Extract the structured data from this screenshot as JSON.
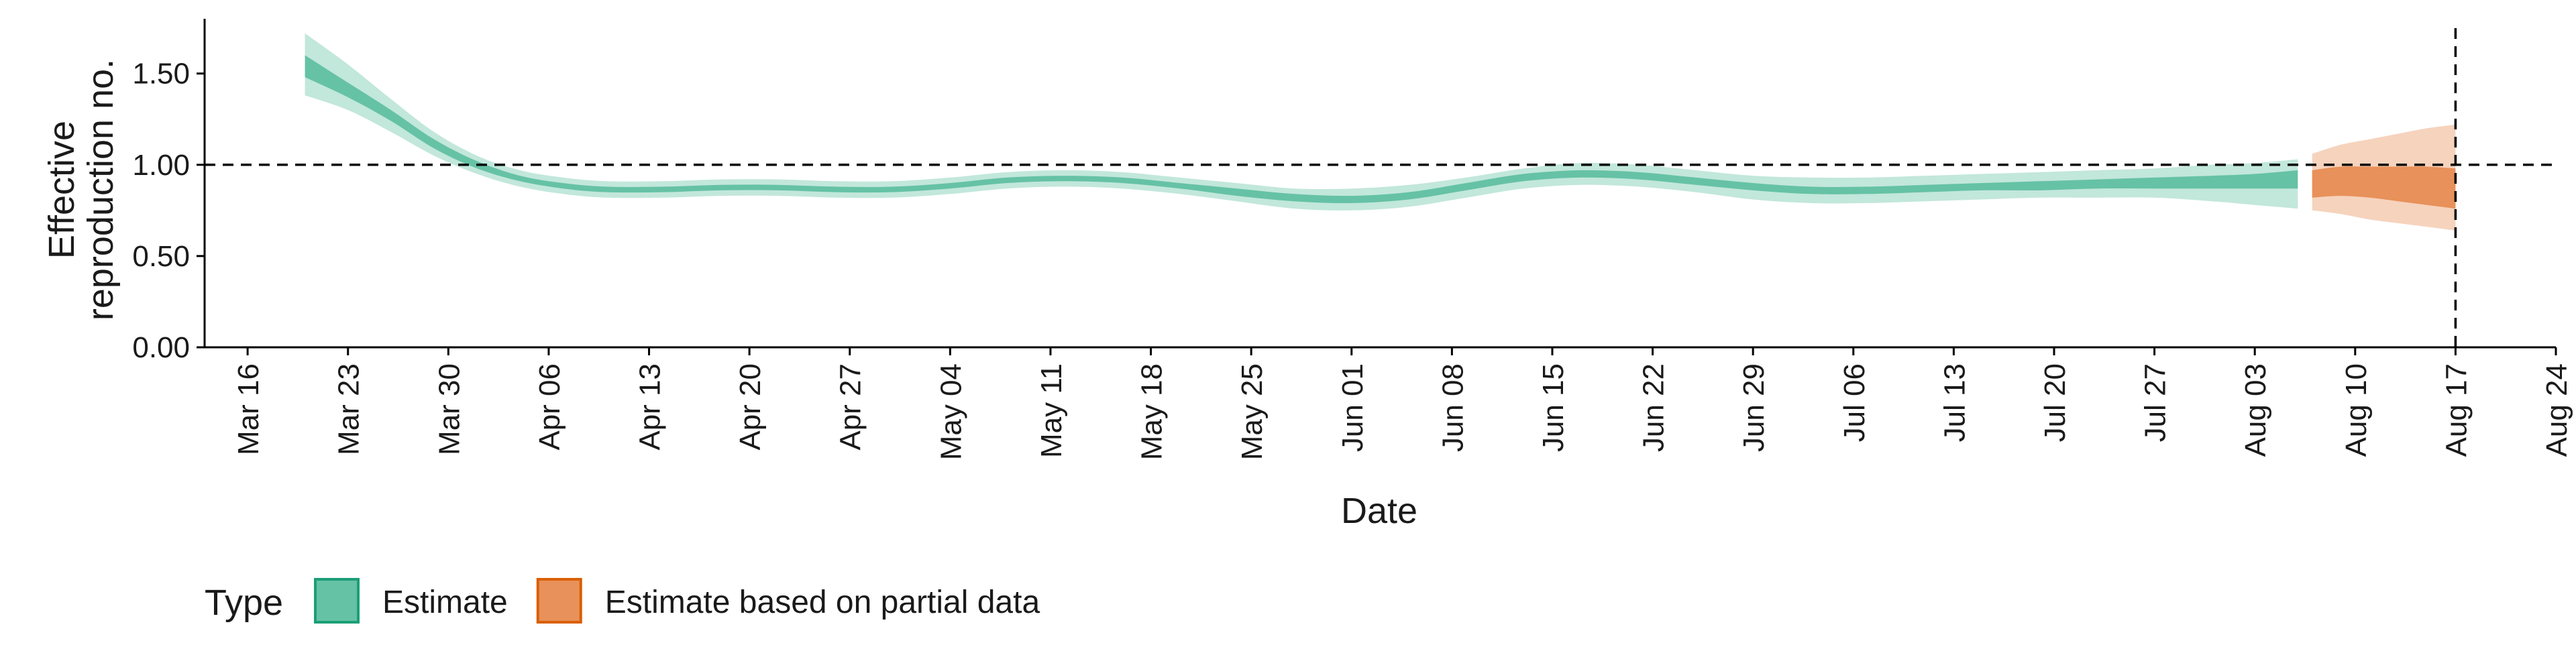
{
  "chart_data": {
    "type": "area",
    "title": "",
    "xlabel": "Date",
    "ylabel": "Effective reproduction no.",
    "ylabel_lines": [
      "Effective",
      "reproduction no."
    ],
    "ylim": [
      0.0,
      1.8
    ],
    "y_ticks": [
      "0.00",
      "0.50",
      "1.00",
      "1.50"
    ],
    "y_tick_values": [
      0.0,
      0.5,
      1.0,
      1.5
    ],
    "xlim": [
      "2020-03-13",
      "2020-08-24"
    ],
    "x_ticks": [
      "Mar 16",
      "Mar 23",
      "Mar 30",
      "Apr 06",
      "Apr 13",
      "Apr 20",
      "Apr 27",
      "May 04",
      "May 11",
      "May 18",
      "May 25",
      "Jun 01",
      "Jun 08",
      "Jun 15",
      "Jun 22",
      "Jun 29",
      "Jul 06",
      "Jul 13",
      "Jul 20",
      "Jul 27",
      "Aug 03",
      "Aug 10",
      "Aug 17",
      "Aug 24"
    ],
    "x_tick_dates": [
      "2020-03-16",
      "2020-03-23",
      "2020-03-30",
      "2020-04-06",
      "2020-04-13",
      "2020-04-20",
      "2020-04-27",
      "2020-05-04",
      "2020-05-11",
      "2020-05-18",
      "2020-05-25",
      "2020-06-01",
      "2020-06-08",
      "2020-06-15",
      "2020-06-22",
      "2020-06-29",
      "2020-07-06",
      "2020-07-13",
      "2020-07-20",
      "2020-07-27",
      "2020-08-03",
      "2020-08-10",
      "2020-08-17",
      "2020-08-24"
    ],
    "reference_hline": 1.0,
    "reference_vline": "2020-08-17",
    "grid": false,
    "legend": {
      "title": "Type",
      "position": "bottom-left",
      "entries": [
        {
          "label": "Estimate",
          "fill": "#66c2a5",
          "border": "#1b9e77"
        },
        {
          "label": "Estimate based on partial data",
          "fill": "#e8915a",
          "border": "#d95f02"
        }
      ]
    },
    "series": [
      {
        "name": "Estimate",
        "color_dark": "#66c2a5",
        "color_light": "#b3e2cd",
        "x": [
          "2020-03-20",
          "2020-03-23",
          "2020-03-26",
          "2020-03-29",
          "2020-04-01",
          "2020-04-04",
          "2020-04-07",
          "2020-04-10",
          "2020-04-14",
          "2020-04-18",
          "2020-04-22",
          "2020-04-26",
          "2020-04-30",
          "2020-05-04",
          "2020-05-08",
          "2020-05-12",
          "2020-05-16",
          "2020-05-20",
          "2020-05-24",
          "2020-05-28",
          "2020-06-01",
          "2020-06-05",
          "2020-06-09",
          "2020-06-13",
          "2020-06-17",
          "2020-06-21",
          "2020-06-25",
          "2020-06-29",
          "2020-07-03",
          "2020-07-07",
          "2020-07-11",
          "2020-07-15",
          "2020-07-19",
          "2020-07-23",
          "2020-07-27",
          "2020-07-31",
          "2020-08-03",
          "2020-08-06"
        ],
        "lower_90": [
          1.38,
          1.3,
          1.18,
          1.05,
          0.95,
          0.88,
          0.84,
          0.82,
          0.82,
          0.83,
          0.83,
          0.82,
          0.82,
          0.84,
          0.87,
          0.88,
          0.87,
          0.84,
          0.8,
          0.76,
          0.75,
          0.77,
          0.82,
          0.87,
          0.89,
          0.88,
          0.85,
          0.81,
          0.79,
          0.79,
          0.8,
          0.81,
          0.82,
          0.82,
          0.82,
          0.8,
          0.78,
          0.76
        ],
        "lower_50": [
          1.48,
          1.37,
          1.24,
          1.09,
          0.98,
          0.91,
          0.87,
          0.85,
          0.85,
          0.86,
          0.86,
          0.85,
          0.85,
          0.87,
          0.9,
          0.91,
          0.9,
          0.87,
          0.83,
          0.8,
          0.79,
          0.81,
          0.86,
          0.91,
          0.93,
          0.92,
          0.89,
          0.86,
          0.84,
          0.84,
          0.85,
          0.86,
          0.86,
          0.87,
          0.87,
          0.87,
          0.87,
          0.87
        ],
        "upper_50": [
          1.6,
          1.45,
          1.3,
          1.14,
          1.02,
          0.94,
          0.9,
          0.88,
          0.88,
          0.89,
          0.89,
          0.88,
          0.88,
          0.9,
          0.93,
          0.94,
          0.93,
          0.9,
          0.87,
          0.84,
          0.83,
          0.85,
          0.9,
          0.95,
          0.97,
          0.96,
          0.93,
          0.9,
          0.88,
          0.88,
          0.89,
          0.9,
          0.91,
          0.92,
          0.93,
          0.94,
          0.95,
          0.97
        ],
        "upper_90": [
          1.72,
          1.55,
          1.36,
          1.18,
          1.05,
          0.97,
          0.93,
          0.91,
          0.91,
          0.92,
          0.92,
          0.91,
          0.91,
          0.93,
          0.96,
          0.97,
          0.96,
          0.93,
          0.9,
          0.87,
          0.87,
          0.89,
          0.93,
          0.98,
          1.01,
          1.0,
          0.97,
          0.94,
          0.93,
          0.93,
          0.94,
          0.95,
          0.96,
          0.97,
          0.98,
          1.0,
          1.01,
          1.03
        ]
      },
      {
        "name": "Estimate based on partial data",
        "color_dark": "#e8915a",
        "color_light": "#f4cbb0",
        "x": [
          "2020-08-07",
          "2020-08-09",
          "2020-08-11",
          "2020-08-13",
          "2020-08-15",
          "2020-08-17"
        ],
        "lower_90": [
          0.75,
          0.73,
          0.7,
          0.68,
          0.66,
          0.64
        ],
        "lower_50": [
          0.82,
          0.83,
          0.82,
          0.8,
          0.78,
          0.76
        ],
        "upper_50": [
          0.97,
          0.99,
          0.99,
          0.99,
          0.99,
          0.98
        ],
        "upper_90": [
          1.06,
          1.11,
          1.14,
          1.17,
          1.2,
          1.22
        ]
      }
    ]
  }
}
